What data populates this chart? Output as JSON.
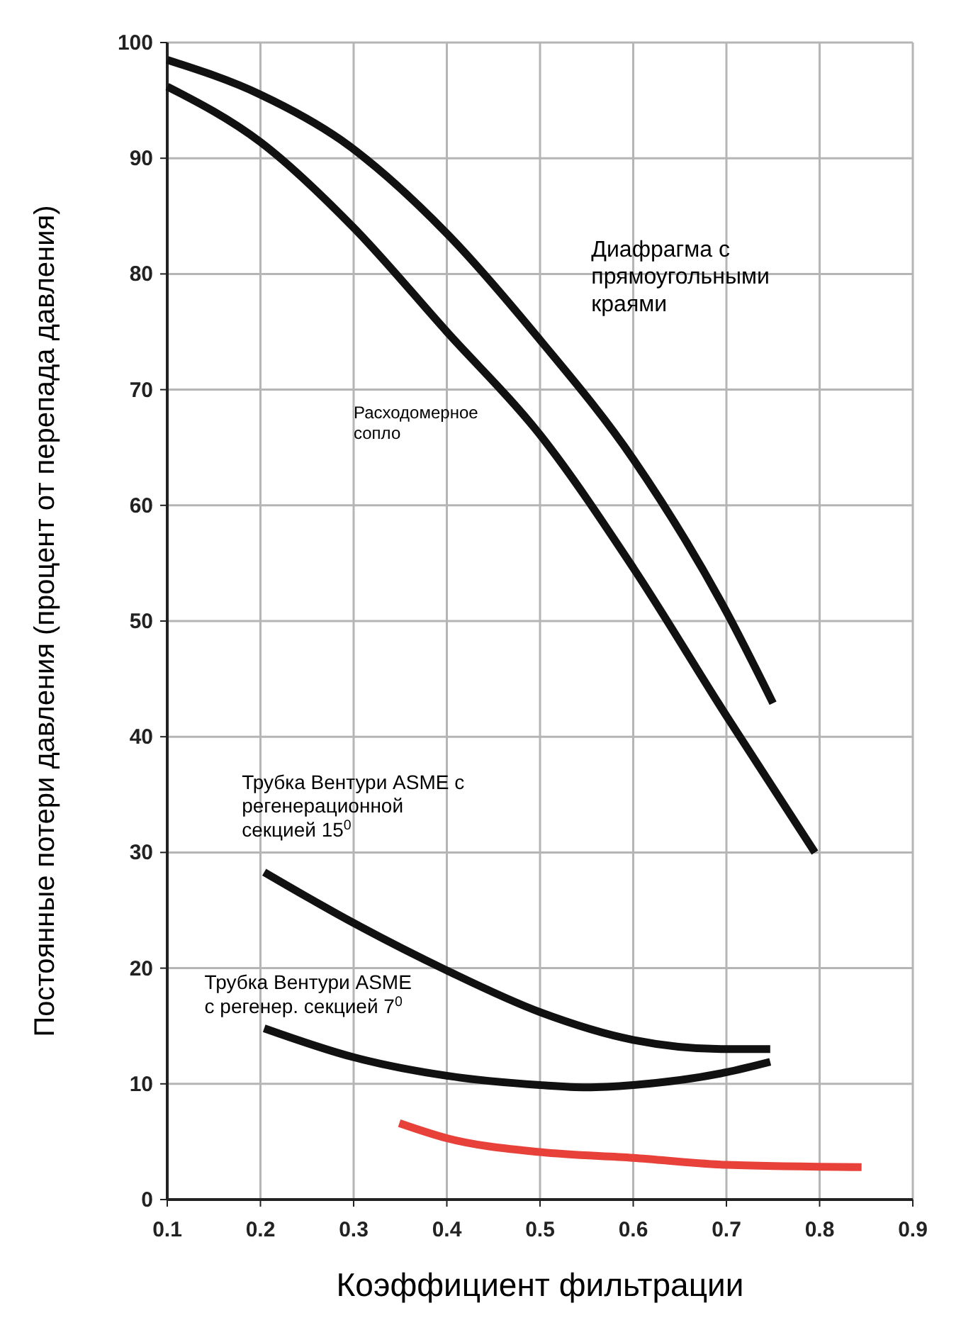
{
  "chart_data": {
    "type": "line",
    "xlabel": "Коэффициент фильтрации",
    "ylabel": "Постоянные потери давления (процент от перепада давления)",
    "xlim": [
      0.1,
      0.9
    ],
    "ylim": [
      0,
      100
    ],
    "xticks": [
      0.1,
      0.2,
      0.3,
      0.4,
      0.5,
      0.6,
      0.7,
      0.8,
      0.9
    ],
    "yticks": [
      0,
      10,
      20,
      30,
      40,
      50,
      60,
      70,
      80,
      90,
      100
    ],
    "grid": true,
    "marker": "none",
    "line_style": "solid",
    "series": [
      {
        "name": "Диафрагма с прямоугольными краями",
        "color": "#111111",
        "x": [
          0.1,
          0.2,
          0.286,
          0.4,
          0.5,
          0.6,
          0.7,
          0.75
        ],
        "values": [
          98.5,
          95.5,
          91.6,
          83.5,
          74.3,
          64,
          50.8,
          42.9
        ]
      },
      {
        "name": "Расходомерное сопло",
        "color": "#111111",
        "x": [
          0.1,
          0.2,
          0.3,
          0.4,
          0.5,
          0.6,
          0.7,
          0.795
        ],
        "values": [
          96.2,
          91.4,
          84,
          75,
          66.1,
          54.6,
          41.8,
          30
        ]
      },
      {
        "name": "Трубка Вентури ASME с регенерационной секцией 15$^{0}$",
        "color": "#111111",
        "x": [
          0.204,
          0.3,
          0.4,
          0.5,
          0.6,
          0.7,
          0.747
        ],
        "values": [
          28.3,
          23.9,
          19.8,
          16.2,
          13.8,
          13,
          13
        ]
      },
      {
        "name": "Трубка Вентури ASME с регенер. секцией 7$^{0}$",
        "color": "#111111",
        "x": [
          0.204,
          0.3,
          0.4,
          0.5,
          0.55,
          0.6,
          0.7,
          0.747
        ],
        "values": [
          14.8,
          12.3,
          10.7,
          9.9,
          9.7,
          9.9,
          11,
          11.9
        ]
      },
      {
        "color": "#e8413a",
        "x": [
          0.349,
          0.4,
          0.5,
          0.6,
          0.7,
          0.845
        ],
        "values": [
          6.6,
          5.3,
          4.1,
          3.6,
          3,
          2.8
        ]
      }
    ]
  }
}
